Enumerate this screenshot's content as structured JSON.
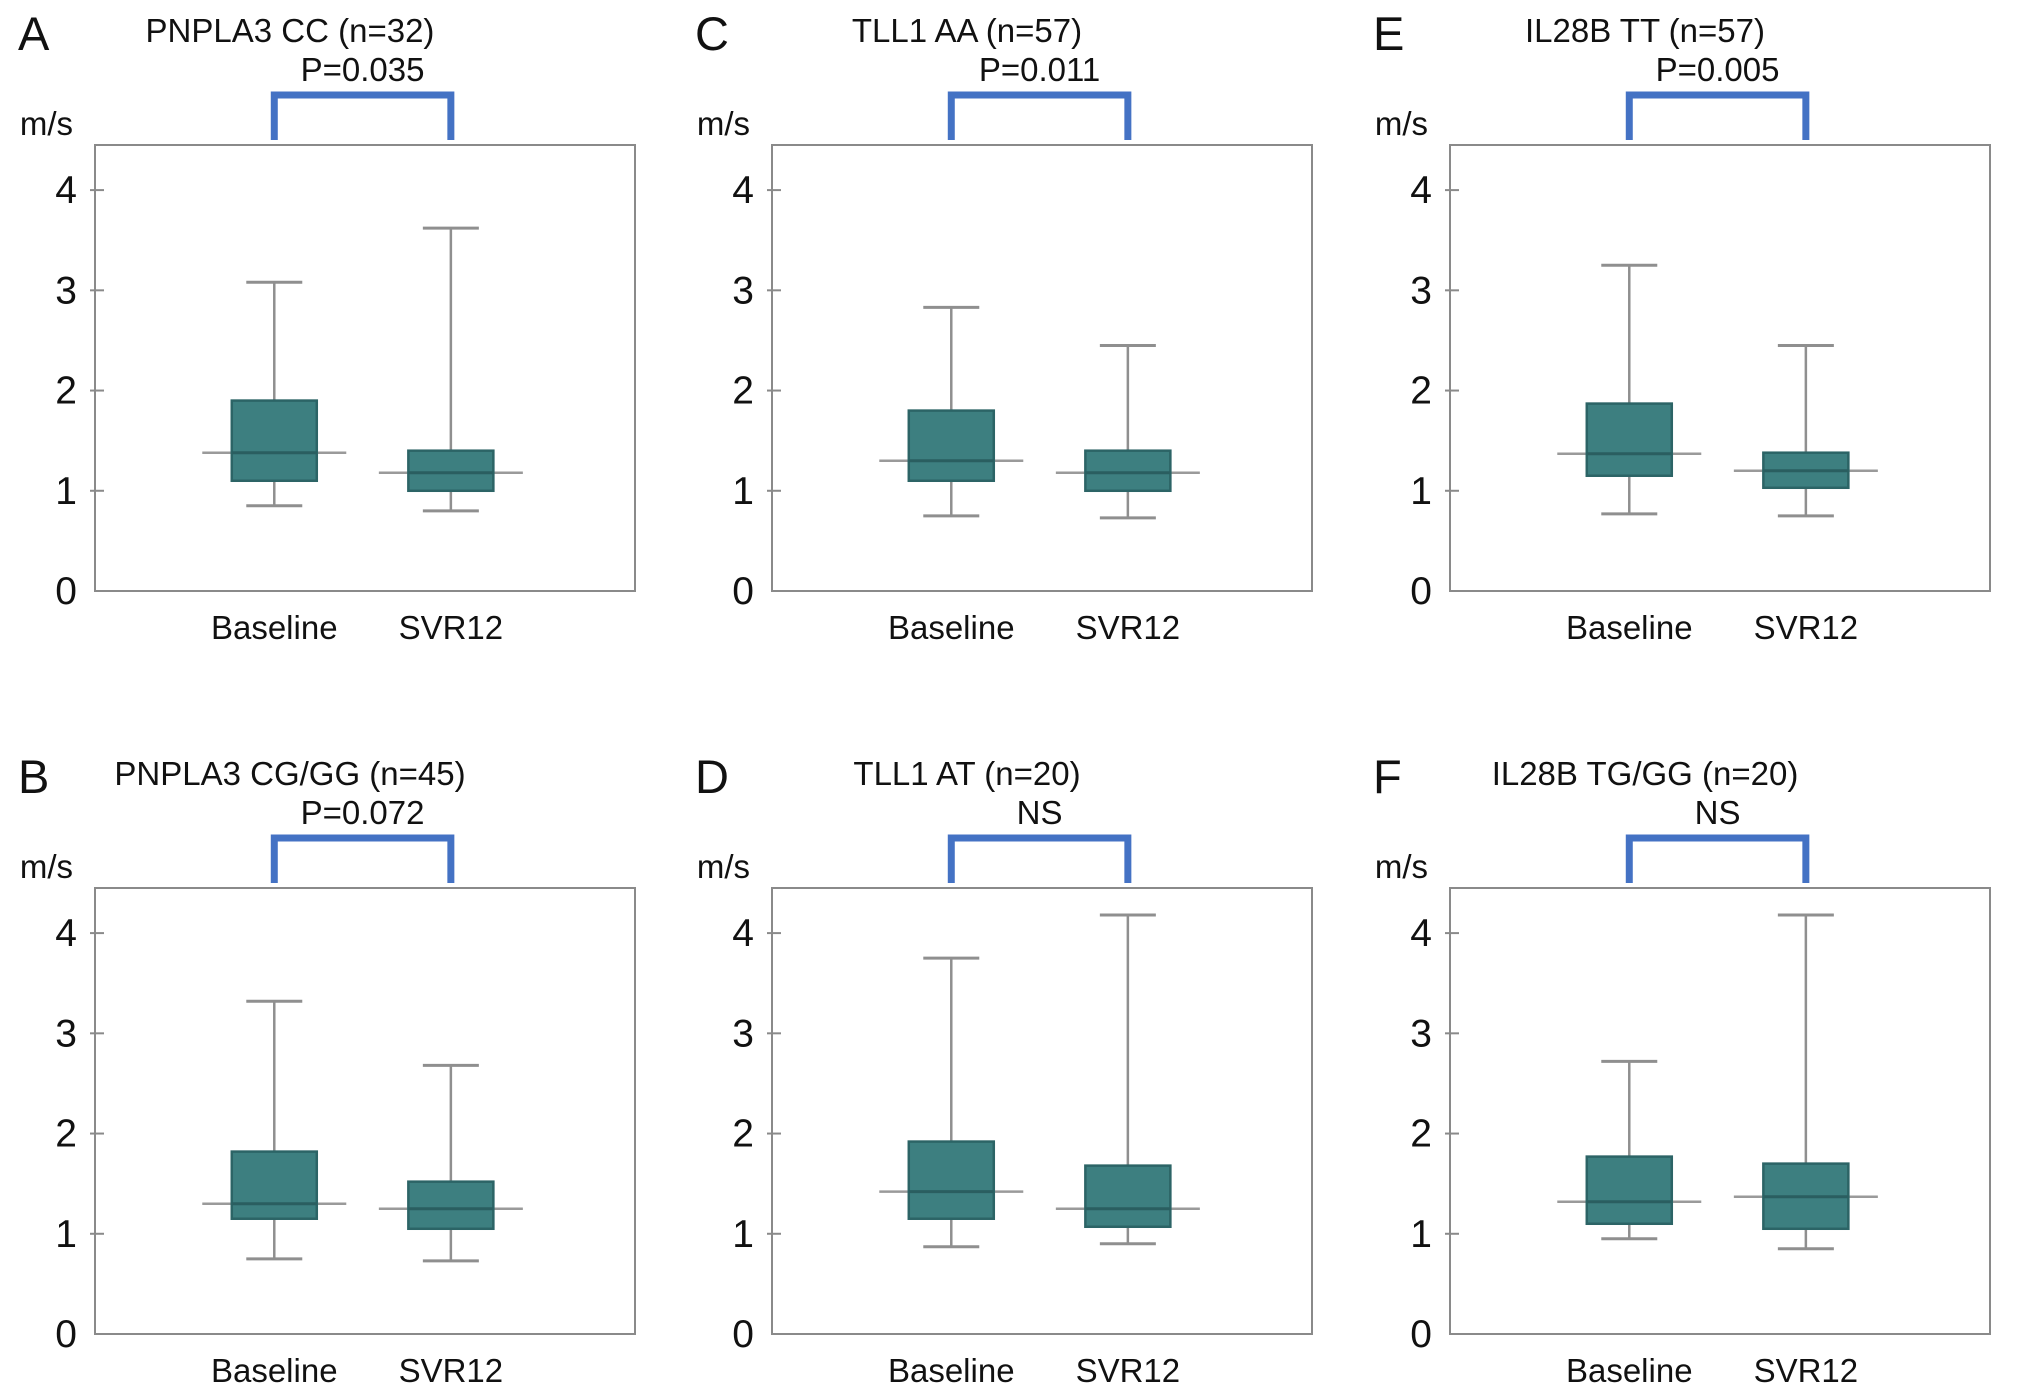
{
  "figure": {
    "unit": "m/s",
    "categories": [
      "Baseline",
      "SVR12"
    ],
    "yticks": [
      0,
      1,
      2,
      3,
      4
    ],
    "colors": {
      "box_fill": "#3D7F80",
      "box_border": "#2C6466",
      "median_line": "#2A5E60",
      "whisker": "#8F8F8F",
      "median_extension": "#9A9A9A",
      "frame": "#8A8A8A",
      "bracket": "#4472C4",
      "text": "#111111"
    }
  },
  "chart_data": {
    "type": "boxplot",
    "ylabel": "m/s",
    "ylim": [
      0,
      4.45
    ],
    "yticks": [
      0,
      1,
      2,
      3,
      4
    ],
    "categories": [
      "Baseline",
      "SVR12"
    ],
    "panels": [
      {
        "letter": "A",
        "title": "PNPLA3 CC (n=32)",
        "p_label": "P=0.035",
        "series": [
          {
            "name": "Baseline",
            "min": 0.85,
            "q1": 1.1,
            "median": 1.38,
            "q3": 1.9,
            "max": 3.08
          },
          {
            "name": "SVR12",
            "min": 0.8,
            "q1": 1.0,
            "median": 1.18,
            "q3": 1.4,
            "max": 3.62
          }
        ]
      },
      {
        "letter": "C",
        "title": "TLL1 AA (n=57)",
        "p_label": "P=0.011",
        "series": [
          {
            "name": "Baseline",
            "min": 0.75,
            "q1": 1.1,
            "median": 1.3,
            "q3": 1.8,
            "max": 2.83
          },
          {
            "name": "SVR12",
            "min": 0.73,
            "q1": 1.0,
            "median": 1.18,
            "q3": 1.4,
            "max": 2.45
          }
        ]
      },
      {
        "letter": "E",
        "title": "IL28B TT (n=57)",
        "p_label": "P=0.005",
        "series": [
          {
            "name": "Baseline",
            "min": 0.77,
            "q1": 1.15,
            "median": 1.37,
            "q3": 1.87,
            "max": 3.25
          },
          {
            "name": "SVR12",
            "min": 0.75,
            "q1": 1.03,
            "median": 1.2,
            "q3": 1.38,
            "max": 2.45
          }
        ]
      },
      {
        "letter": "B",
        "title": "PNPLA3 CG/GG (n=45)",
        "p_label": "P=0.072",
        "series": [
          {
            "name": "Baseline",
            "min": 0.75,
            "q1": 1.15,
            "median": 1.3,
            "q3": 1.82,
            "max": 3.32
          },
          {
            "name": "SVR12",
            "min": 0.73,
            "q1": 1.05,
            "median": 1.25,
            "q3": 1.52,
            "max": 2.68
          }
        ]
      },
      {
        "letter": "D",
        "title": "TLL1 AT (n=20)",
        "p_label": "NS",
        "series": [
          {
            "name": "Baseline",
            "min": 0.87,
            "q1": 1.15,
            "median": 1.42,
            "q3": 1.92,
            "max": 3.75
          },
          {
            "name": "SVR12",
            "min": 0.9,
            "q1": 1.07,
            "median": 1.25,
            "q3": 1.68,
            "max": 4.18
          }
        ]
      },
      {
        "letter": "F",
        "title": "IL28B TG/GG (n=20)",
        "p_label": "NS",
        "series": [
          {
            "name": "Baseline",
            "min": 0.95,
            "q1": 1.1,
            "median": 1.32,
            "q3": 1.77,
            "max": 2.72
          },
          {
            "name": "SVR12",
            "min": 0.85,
            "q1": 1.05,
            "median": 1.37,
            "q3": 1.7,
            "max": 4.18
          }
        ]
      }
    ]
  }
}
